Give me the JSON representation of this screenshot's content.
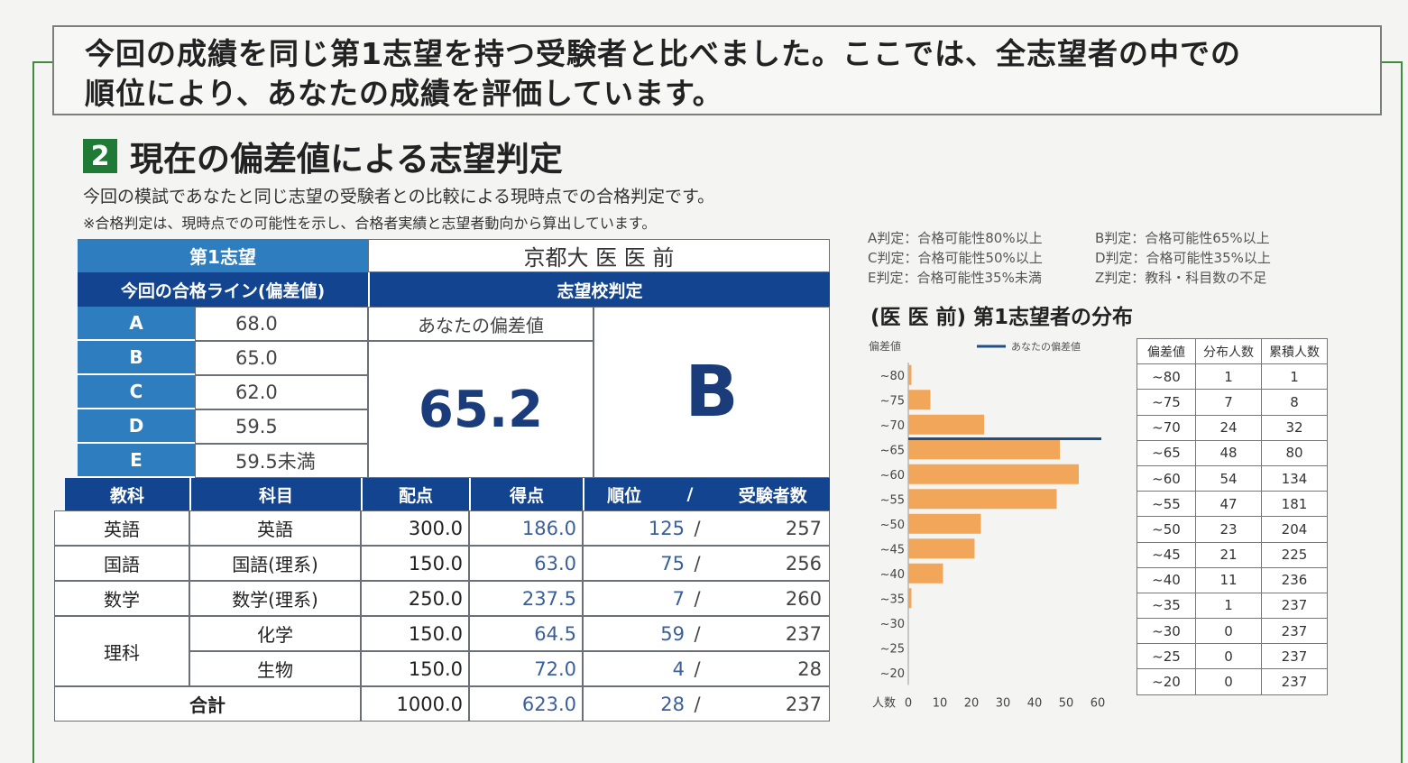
{
  "intro_text_line1": "今回の成績を同じ第1志望を持つ受験者と比べました。ここでは、全志望者の中での",
  "intro_text_line2": "順位により、あなたの成績を評価しています。",
  "section": {
    "number": "2",
    "title": "現在の偏差値による志望判定"
  },
  "subtitle1": "今回の模試であなたと同じ志望の受験者との比較による現時点での合格判定です。",
  "subtitle2": "※合格判定は、現時点での可能性を示し、合格者実績と志望者動向から算出しています。",
  "first_choice_label": "第1志望",
  "first_choice_value": "京都大 医 医 前",
  "pass_line_label": "今回の合格ライン(偏差値)",
  "judgement_label": "志望校判定",
  "pass_lines": [
    {
      "grade": "A",
      "value": "68.0"
    },
    {
      "grade": "B",
      "value": "65.0"
    },
    {
      "grade": "C",
      "value": "62.0"
    },
    {
      "grade": "D",
      "value": "59.5"
    },
    {
      "grade": "E",
      "value": "59.5未満"
    }
  ],
  "your_score_label": "あなたの偏差値",
  "your_score": "65.2",
  "judgement": "B",
  "score_headers": {
    "subject_group": "教科",
    "subject": "科目",
    "max": "配点",
    "score": "得点",
    "rank": "順位",
    "slash": "/",
    "examinees": "受験者数"
  },
  "scores": [
    {
      "group": "英語",
      "subject": "英語",
      "max": "300.0",
      "score": "186.0",
      "rank": "125",
      "examinees": "257"
    },
    {
      "group": "国語",
      "subject": "国語(理系)",
      "max": "150.0",
      "score": "63.0",
      "rank": "75",
      "examinees": "256"
    },
    {
      "group": "数学",
      "subject": "数学(理系)",
      "max": "250.0",
      "score": "237.5",
      "rank": "7",
      "examinees": "260"
    },
    {
      "group": "理科",
      "subject": "化学",
      "max": "150.0",
      "score": "64.5",
      "rank": "59",
      "examinees": "237"
    },
    {
      "group": "",
      "subject": "生物",
      "max": "150.0",
      "score": "72.0",
      "rank": "4",
      "examinees": "28"
    }
  ],
  "total": {
    "label": "合計",
    "max": "1000.0",
    "score": "623.0",
    "rank": "28",
    "examinees": "237"
  },
  "legend": [
    [
      "A判定：合格可能性80%以上",
      "B判定：合格可能性65%以上"
    ],
    [
      "C判定：合格可能性50%以上",
      "D判定：合格可能性35%以上"
    ],
    [
      "E判定：合格可能性35%未満",
      "Z判定：教科・科目数の不足"
    ]
  ],
  "dist_title": "(医 医 前) 第1志望者の分布",
  "chart_data": {
    "type": "bar",
    "orientation": "horizontal",
    "ylabel": "偏差値",
    "xlabel": "人数",
    "legend_label": "あなたの偏差値",
    "categories": [
      "~80",
      "~75",
      "~70",
      "~65",
      "~60",
      "~55",
      "~50",
      "~45",
      "~40",
      "~35",
      "~30",
      "~25",
      "~20"
    ],
    "values": [
      1,
      7,
      24,
      48,
      54,
      47,
      23,
      21,
      11,
      1,
      0,
      0,
      0
    ],
    "xlim": [
      0,
      60
    ],
    "xticks": [
      "0",
      "10",
      "20",
      "30",
      "40",
      "50",
      "60"
    ],
    "your_score_line": 65.2,
    "bar_color": "#f2a65a",
    "line_color": "#1e4f86"
  },
  "dist_table": {
    "headers": [
      "偏差値",
      "分布人数",
      "累積人数"
    ],
    "rows": [
      [
        "~80",
        "1",
        "1"
      ],
      [
        "~75",
        "7",
        "8"
      ],
      [
        "~70",
        "24",
        "32"
      ],
      [
        "~65",
        "48",
        "80"
      ],
      [
        "~60",
        "54",
        "134"
      ],
      [
        "~55",
        "47",
        "181"
      ],
      [
        "~50",
        "23",
        "204"
      ],
      [
        "~45",
        "21",
        "225"
      ],
      [
        "~40",
        "11",
        "236"
      ],
      [
        "~35",
        "1",
        "237"
      ],
      [
        "~30",
        "0",
        "237"
      ],
      [
        "~25",
        "0",
        "237"
      ],
      [
        "~20",
        "0",
        "237"
      ]
    ]
  }
}
